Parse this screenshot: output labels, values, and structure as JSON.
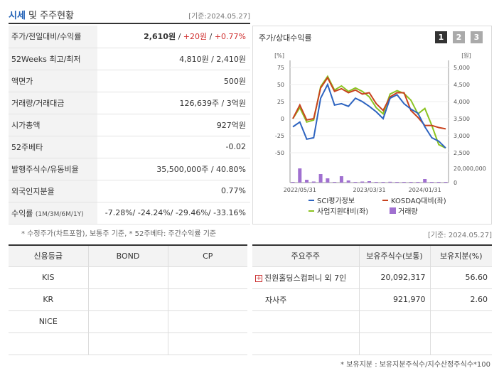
{
  "header": {
    "title_a": "시세",
    "title_b": " 및 주주현황",
    "date": "[기준:2024.05.27]"
  },
  "quote": {
    "rows": [
      {
        "label": "주가/전일대비/수익률",
        "price": "2,610원",
        "sep1": " / ",
        "change": "+20원",
        "sep2": " / ",
        "pct": "+0.77%"
      },
      {
        "label": "52Weeks 최고/최저",
        "value": "4,810원 / 2,410원"
      },
      {
        "label": "액면가",
        "value": "500원"
      },
      {
        "label": "거래량/거래대금",
        "value": "126,639주 / 3억원"
      },
      {
        "label": "시가총액",
        "value": "927억원"
      },
      {
        "label": "52주베타",
        "value": "-0.02"
      },
      {
        "label": "발행주식수/유동비율",
        "value": "35,500,000주 / 40.80%"
      },
      {
        "label": "외국인지분율",
        "value": "0.77%"
      },
      {
        "label": "수익률",
        "label_small": "(1M/3M/6M/1Y)",
        "value": "-7.28%/ -24.24%/ -29.46%/ -33.16%"
      }
    ],
    "note": "* 수정주가(차트포함), 보통주 기준, * 52주베타: 주간수익률 기준"
  },
  "chart_panel": {
    "title": "주가/상대수익률",
    "tabs": [
      "1",
      "2",
      "3"
    ],
    "legend": [
      "SCI평가정보",
      "KOSDAQ대비(좌)",
      "사업지원대비(좌)",
      "거래량"
    ]
  },
  "chart_data": {
    "type": "line",
    "left_axis_unit": "[%]",
    "right_axis_unit": "[원]",
    "left_ticks": [
      "75",
      "50",
      "25",
      "0",
      "-25",
      "-50"
    ],
    "right_ticks": [
      "5,000",
      "4,500",
      "4,000",
      "3,500",
      "3,000",
      "2,500"
    ],
    "volume_ticks": [
      "20,000,000",
      "0"
    ],
    "x_ticks": [
      "2022/05/31",
      "2023/03/31",
      "2024/01/31"
    ],
    "ylim_left": [
      -50,
      75
    ],
    "series": [
      {
        "name": "SCI평가정보",
        "color": "#2e64c0",
        "values": [
          -12,
          -5,
          -30,
          -28,
          30,
          50,
          20,
          22,
          18,
          30,
          25,
          18,
          10,
          0,
          30,
          35,
          22,
          14,
          8,
          -12,
          -28,
          -33,
          -43
        ]
      },
      {
        "name": "KOSDAQ대비(좌)",
        "color": "#c8421e",
        "values": [
          0,
          20,
          -2,
          0,
          45,
          60,
          40,
          44,
          38,
          42,
          36,
          38,
          22,
          12,
          32,
          38,
          38,
          12,
          2,
          -10,
          -10,
          -13,
          -15
        ]
      },
      {
        "name": "사업지원대비(좌)",
        "color": "#8bc321",
        "values": [
          0,
          16,
          -5,
          -2,
          47,
          62,
          42,
          48,
          40,
          45,
          40,
          32,
          16,
          7,
          36,
          41,
          37,
          27,
          7,
          15,
          -10,
          -38,
          -43
        ]
      }
    ],
    "volume": {
      "name": "거래량",
      "color": "#a070d0",
      "values": [
        0,
        20000000,
        4000000,
        1500000,
        12000000,
        6000000,
        1000000,
        9000000,
        3000000,
        1000000,
        1500000,
        2000000,
        1000000,
        800000,
        1200000,
        700000,
        900000,
        600000,
        800000,
        5000000,
        700000,
        500000,
        600000
      ]
    }
  },
  "credit": {
    "headers": [
      "신용등급",
      "BOND",
      "CP"
    ],
    "rows": [
      [
        "KIS",
        "",
        ""
      ],
      [
        "KR",
        "",
        ""
      ],
      [
        "NICE",
        "",
        ""
      ],
      [
        "",
        "",
        ""
      ]
    ]
  },
  "holders": {
    "date": "[기준: 2024.05.27]",
    "headers": [
      "주요주주",
      "보유주식수(보통)",
      "보유지분(%)"
    ],
    "rows": [
      {
        "name": "진원홀딩스컴퍼니 외 7인",
        "shares": "20,092,317",
        "pct": "56.60",
        "expand": "+"
      },
      {
        "name": "자사주",
        "shares": "921,970",
        "pct": "2.60",
        "expand": ""
      }
    ],
    "note": "* 보유지분 : 보유지분주식수/지수산정주식수*100"
  }
}
